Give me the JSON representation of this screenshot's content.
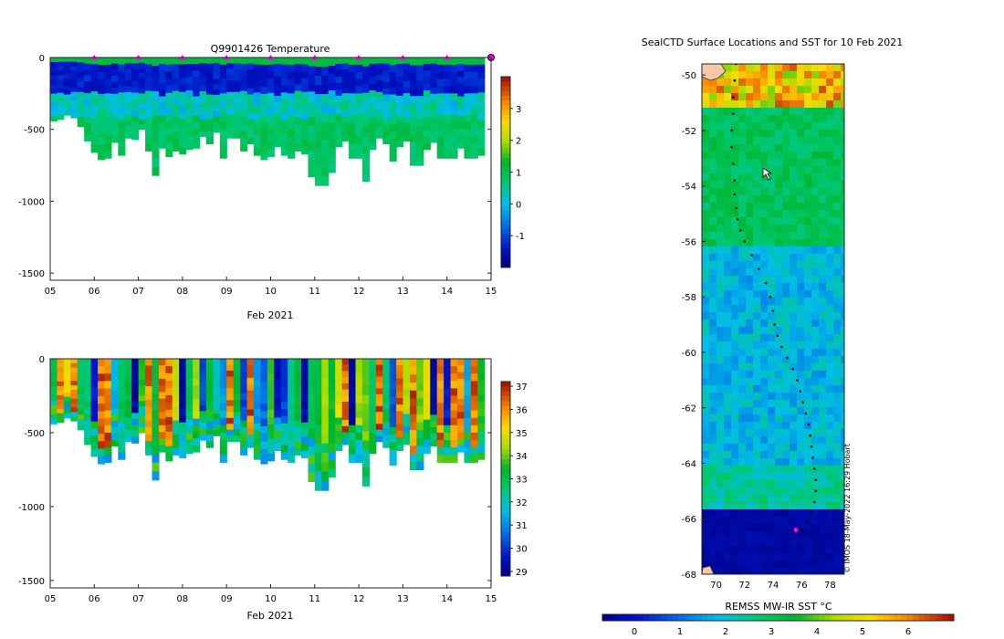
{
  "chart_data": [
    {
      "type": "heatmap",
      "panel": "top-left",
      "title": "Q9901426  Temperature",
      "xlabel": "Feb 2021",
      "ylabel": "",
      "x_tick_labels": [
        "05",
        "06",
        "07",
        "08",
        "09",
        "10",
        "11",
        "12",
        "13",
        "14",
        "15"
      ],
      "x_ticks": [
        5,
        6,
        7,
        8,
        9,
        10,
        11,
        12,
        13,
        14,
        15
      ],
      "xlim": [
        5,
        15
      ],
      "y_tick_labels": [
        "0",
        "-500",
        "-1000",
        "-1500"
      ],
      "y_ticks": [
        0,
        -500,
        -1000,
        -1500
      ],
      "ylim": [
        -1550,
        0
      ],
      "colorbar": {
        "ticks": [
          3,
          2,
          1,
          0,
          -1
        ],
        "tick_labels": [
          "3",
          "2",
          "1",
          "0",
          "-1"
        ],
        "range": [
          -2.0,
          4.0
        ]
      },
      "profile_markers_day": [
        6,
        7,
        8,
        9,
        10,
        11,
        12,
        13,
        14
      ],
      "last_marker_day": 15,
      "profile_max_depth_m": [
        -440,
        -430,
        -400,
        -420,
        -480,
        -580,
        -660,
        -710,
        -700,
        -590,
        -680,
        -560,
        -570,
        -500,
        -650,
        -820,
        -630,
        -690,
        -650,
        -670,
        -640,
        -630,
        -550,
        -600,
        -520,
        -700,
        -560,
        -560,
        -650,
        -600,
        -680,
        -710,
        -690,
        -620,
        -680,
        -700,
        -650,
        -670,
        -830,
        -890,
        -890,
        -800,
        -620,
        -580,
        -700,
        -700,
        -860,
        -640,
        -560,
        -600,
        -720,
        -620,
        -580,
        -750,
        -750,
        -640,
        -590,
        -700,
        -700,
        -700,
        -630,
        -700,
        -700,
        -680
      ]
    },
    {
      "type": "heatmap",
      "panel": "bottom-left",
      "title": "",
      "xlabel": "Feb 2021",
      "ylabel": "",
      "x_tick_labels": [
        "05",
        "06",
        "07",
        "08",
        "09",
        "10",
        "11",
        "12",
        "13",
        "14",
        "15"
      ],
      "x_ticks": [
        5,
        6,
        7,
        8,
        9,
        10,
        11,
        12,
        13,
        14,
        15
      ],
      "xlim": [
        5,
        15
      ],
      "y_tick_labels": [
        "0",
        "-500",
        "-1000",
        "-1500"
      ],
      "y_ticks": [
        0,
        -500,
        -1000,
        -1500
      ],
      "ylim": [
        -1550,
        0
      ],
      "colorbar": {
        "ticks": [
          37,
          36,
          35,
          34,
          33,
          32,
          31,
          30,
          29
        ],
        "tick_labels": [
          "37",
          "36",
          "35",
          "34",
          "33",
          "32",
          "31",
          "30",
          "29"
        ],
        "range": [
          28.8,
          37.2
        ]
      }
    },
    {
      "type": "heatmap",
      "panel": "right-map",
      "title": "SealCTD Surface Locations and SST for 10 Feb 2021",
      "xlabel": "",
      "ylabel": "",
      "x_tick_labels": [
        "70",
        "72",
        "74",
        "76",
        "78"
      ],
      "x_ticks": [
        70,
        72,
        74,
        76,
        78
      ],
      "xlim": [
        69.0,
        79.0
      ],
      "y_tick_labels": [
        "-50",
        "-52",
        "-54",
        "-56",
        "-58",
        "-60",
        "-62",
        "-64",
        "-66",
        "-68"
      ],
      "y_ticks": [
        -50,
        -52,
        -54,
        -56,
        -58,
        -60,
        -62,
        -64,
        -66,
        -68
      ],
      "ylim": [
        -68.0,
        -49.6
      ],
      "colorbar": {
        "label": "REMSS MW-IR SST °C",
        "ticks": [
          0,
          1,
          2,
          3,
          4,
          5,
          6
        ],
        "tick_labels": [
          "0",
          "1",
          "2",
          "3",
          "4",
          "5",
          "6"
        ],
        "range": [
          -0.7,
          7.0
        ]
      },
      "track_lon": [
        71.4,
        71.3,
        71.2,
        71.2,
        71.1,
        71.1,
        71.2,
        71.3,
        71.3,
        71.4,
        71.5,
        71.7,
        72.0,
        72.5,
        73.0,
        73.5,
        73.8,
        74.0,
        74.1,
        74.3,
        74.6,
        75.0,
        75.4,
        75.7,
        75.9,
        76.1,
        76.3,
        76.5,
        76.6,
        76.7,
        76.8,
        76.9,
        77.0,
        77.0,
        76.9,
        76.7,
        76.4,
        76.0
      ],
      "track_lat": [
        -49.6,
        -50.2,
        -50.8,
        -51.4,
        -52.0,
        -52.6,
        -53.2,
        -53.8,
        -54.3,
        -54.8,
        -55.2,
        -55.6,
        -56.0,
        -56.5,
        -57.0,
        -57.5,
        -58.0,
        -58.5,
        -59.0,
        -59.4,
        -59.8,
        -60.2,
        -60.6,
        -61.0,
        -61.4,
        -61.8,
        -62.2,
        -62.6,
        -63.0,
        -63.4,
        -63.8,
        -64.2,
        -64.6,
        -65.0,
        -65.4,
        -65.8,
        -66.1,
        -66.4
      ],
      "current_position": {
        "lon": 75.6,
        "lat": -66.4
      },
      "credit": "© IMOS 18-May-2022 16:29 Hobart"
    }
  ]
}
